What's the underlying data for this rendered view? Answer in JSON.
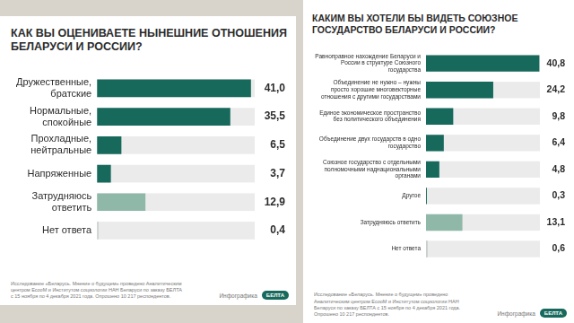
{
  "chart_data": [
    {
      "type": "bar",
      "orientation": "horizontal",
      "title": "КАК ВЫ ОЦЕНИВАЕТЕ НЫНЕШНИЕ ОТНОШЕНИЯ БЕЛАРУСИ И РОССИИ?",
      "categories": [
        "Дружественные, братские",
        "Нормальные, спокойные",
        "Прохладные, нейтральные",
        "Напряженные",
        "Затрудняюсь ответить",
        "Нет ответа"
      ],
      "values": [
        41.0,
        35.5,
        6.5,
        3.7,
        12.9,
        0.4
      ],
      "value_labels": [
        "41,0",
        "35,5",
        "6,5",
        "3,7",
        "12,9",
        "0,4"
      ],
      "colors": [
        "#17695c",
        "#17695c",
        "#17695c",
        "#17695c",
        "#8fb8a9",
        "#c9cfcd"
      ],
      "xlim": [
        0,
        42
      ],
      "grid": false,
      "data_labels": true,
      "tick_labels": "y",
      "annotations": [
        "Исследование «Беларусь. Мнение о будущем» проведено Аналитическим центром EcooM и Институтом социологии НАН Беларуси по заказу БЕЛТА с 15 ноября по 4 декабря 2021 года. Опрошено 10 217 респондентов.",
        "Инфографика",
        "БЕЛТА"
      ]
    },
    {
      "type": "bar",
      "orientation": "horizontal",
      "title": "КАКИМ ВЫ ХОТЕЛИ БЫ ВИДЕТЬ СОЮЗНОЕ ГОСУДАРСТВО БЕЛАРУСИ И РОССИИ?",
      "categories": [
        "Равноправное нахождение Беларуси и России в структуре Союзного государства",
        "Объединение не нужно – нужны просто хорошие многовекторные отношения с другими государствами",
        "Единое экономическое пространство без политического объединения",
        "Объединение двух государств в одно государство",
        "Союзное государство с отдельными полномочными наднациональными органами",
        "Другое",
        "Затрудняюсь ответить",
        "Нет ответа"
      ],
      "values": [
        40.8,
        24.2,
        9.8,
        6.4,
        4.8,
        0.3,
        13.1,
        0.6
      ],
      "value_labels": [
        "40,8",
        "24,2",
        "9,8",
        "6,4",
        "4,8",
        "0,3",
        "13,1",
        "0,6"
      ],
      "colors": [
        "#17695c",
        "#17695c",
        "#17695c",
        "#17695c",
        "#17695c",
        "#17695c",
        "#8fb8a9",
        "#c9cfcd"
      ],
      "xlim": [
        0,
        41
      ],
      "grid": false,
      "data_labels": true,
      "tick_labels": "y",
      "annotations": [
        "Исследование «Беларусь. Мнение о будущем» проведено Аналитическим центром EcooM и Институтом социологии НАН Беларуси по заказу БЕЛТА с 15 ноября по 4 декабря 2021 года. Опрошено 10 217 респондентов.",
        "Инфографика",
        "БЕЛТА"
      ]
    }
  ]
}
